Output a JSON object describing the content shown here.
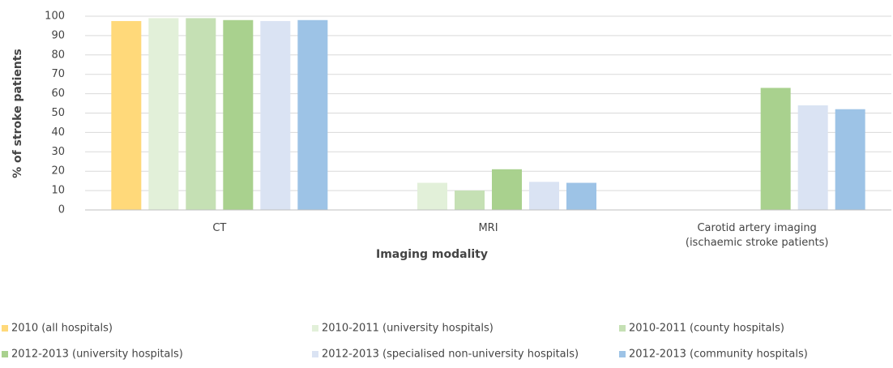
{
  "chart_data": {
    "type": "bar",
    "y_label": "% of stroke patients",
    "x_label": "Imaging modality",
    "categories": [
      "CT",
      "MRI",
      "Carotid artery imaging (ischaemic stroke patients)"
    ],
    "series": [
      {
        "name": "2010 (all hospitals)",
        "color": "#ffd97a",
        "values": [
          97.5,
          null,
          null
        ]
      },
      {
        "name": "2010-2011 (university hospitals)",
        "color": "#e2f0d9",
        "values": [
          99,
          14,
          null
        ]
      },
      {
        "name": "2010-2011 (county hospitals)",
        "color": "#c5e0b4",
        "values": [
          99,
          10,
          null
        ]
      },
      {
        "name": "2012-2013 (university hospitals)",
        "color": "#a9d18e",
        "values": [
          98,
          21,
          63
        ]
      },
      {
        "name": "2012-2013 (specialised non-university hospitals)",
        "color": "#dae3f3",
        "values": [
          97.5,
          14.5,
          54
        ]
      },
      {
        "name": "2012-2013 (community hospitals)",
        "color": "#9dc3e6",
        "values": [
          98,
          14,
          52
        ]
      }
    ],
    "ylim": [
      0,
      100
    ],
    "yticks": [
      0,
      10,
      20,
      30,
      40,
      50,
      60,
      70,
      80,
      90,
      100
    ],
    "grid": true
  }
}
